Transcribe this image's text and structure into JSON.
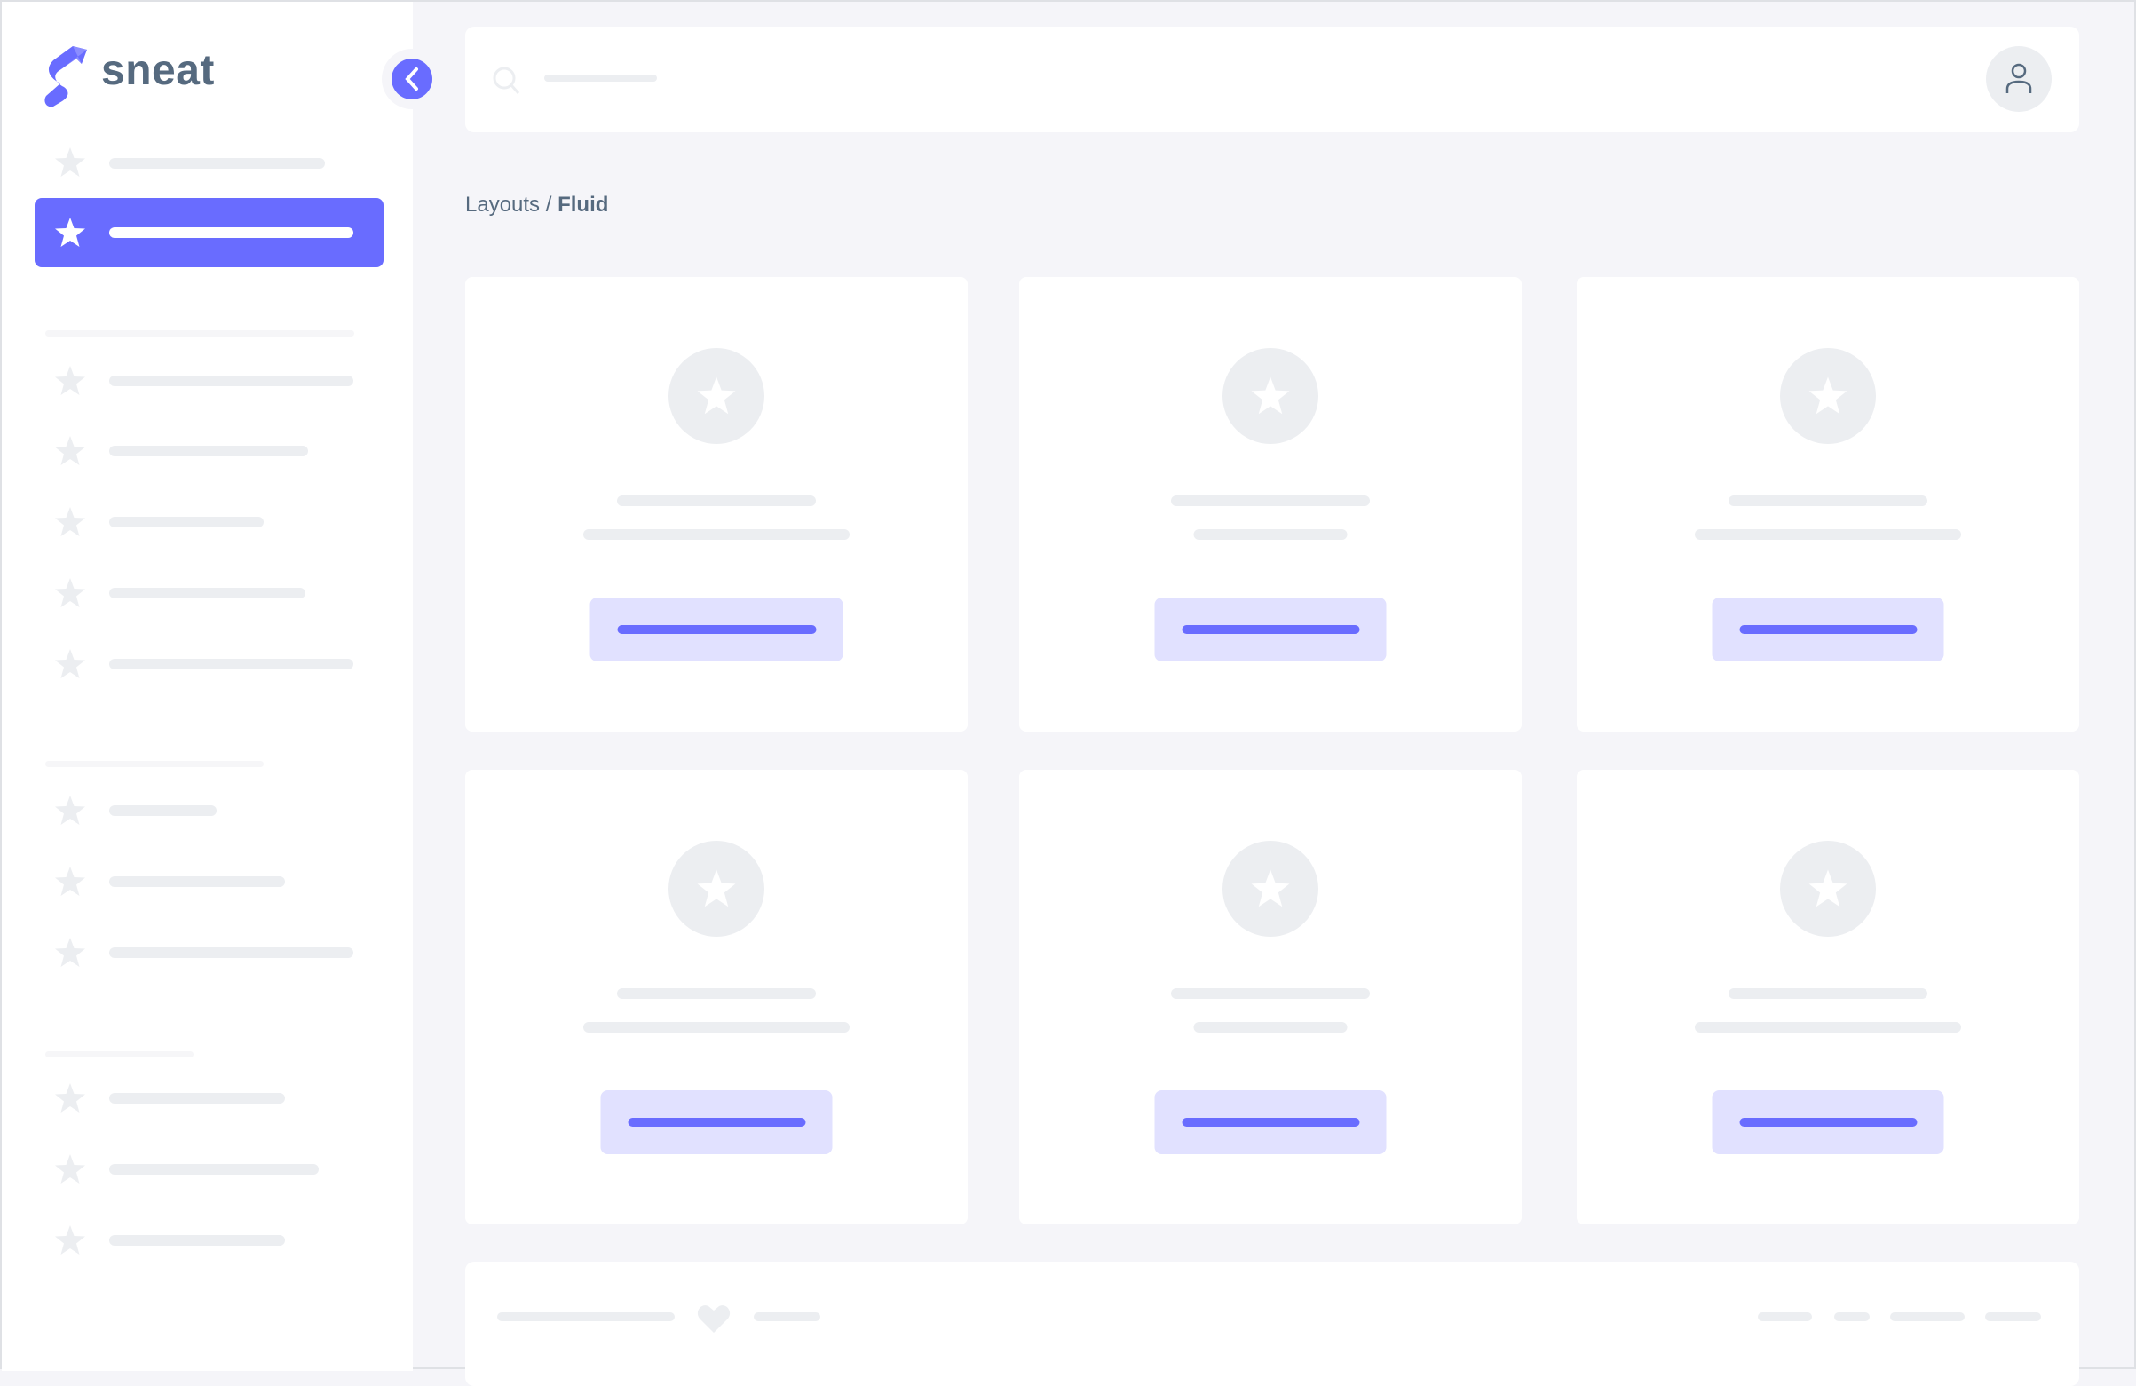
{
  "brand": {
    "name": "sneat",
    "primary_color": "#696cff",
    "text_color": "#566a7f"
  },
  "breadcrumb": {
    "parent": "Layouts",
    "separator": "/",
    "current": "Fluid"
  },
  "icons": {
    "menu": "star-icon",
    "collapse": "chevron-left-icon",
    "search": "search-icon",
    "user": "user-icon",
    "footer": "heart-icon"
  }
}
